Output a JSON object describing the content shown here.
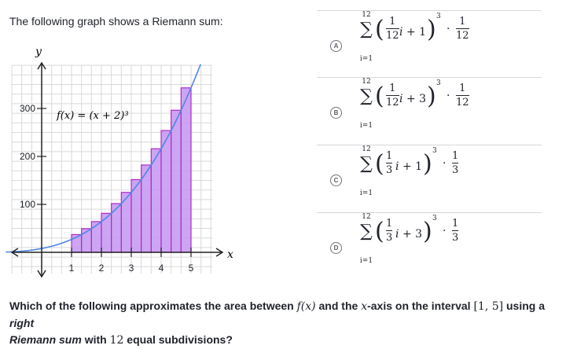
{
  "prompt": "The following graph shows a Riemann sum:",
  "graph": {
    "y_axis_label": "y",
    "x_axis_label": "x",
    "function_label": "f(x) = (x + 2)³",
    "x_ticks": [
      "1",
      "2",
      "3",
      "4",
      "5"
    ],
    "y_ticks": [
      "300",
      "200",
      "100"
    ],
    "colors": {
      "curve": "#4f86e8",
      "bar_fill": "#c79bf2",
      "bar_stroke": "#b327c8",
      "grid": "#d9d9d9",
      "axis": "#222222"
    }
  },
  "chart_data": {
    "type": "bar",
    "title": "",
    "function": "f(x) = (x + 2)^3",
    "subdivisions": 12,
    "interval": [
      1,
      5
    ],
    "bar_right_endpoints": [
      1.333,
      1.667,
      2.0,
      2.333,
      2.667,
      3.0,
      3.333,
      3.667,
      4.0,
      4.333,
      4.667,
      5.0
    ],
    "values": [
      37.0,
      49.3,
      64.0,
      81.4,
      101.6,
      125.0,
      151.7,
      182.0,
      216.0,
      254.0,
      296.3,
      343.0
    ],
    "xlim": [
      -1,
      6
    ],
    "ylim": [
      -50,
      400
    ],
    "grid": true
  },
  "choices": [
    {
      "letter": "A",
      "upper": "12",
      "lower": "i=1",
      "num": "1",
      "den": "12",
      "rest": "+ 1",
      "exp": "3",
      "mult_num": "1",
      "mult_den": "12"
    },
    {
      "letter": "B",
      "upper": "12",
      "lower": "i=1",
      "num": "1",
      "den": "12",
      "rest": "+ 3",
      "exp": "3",
      "mult_num": "1",
      "mult_den": "12"
    },
    {
      "letter": "C",
      "upper": "12",
      "lower": "i=1",
      "num": "1",
      "den": "3",
      "rest": "+ 1",
      "exp": "3",
      "mult_num": "1",
      "mult_den": "3"
    },
    {
      "letter": "D",
      "upper": "12",
      "lower": "i=1",
      "num": "1",
      "den": "3",
      "rest": "+ 3",
      "exp": "3",
      "mult_num": "1",
      "mult_den": "3"
    }
  ],
  "question": {
    "part1": "Which of the following approximates the area between ",
    "fx": "f(x)",
    "part2": " and the ",
    "xaxis": "x",
    "part3": "-axis on the interval ",
    "interval": "[1, 5]",
    "part4": " using a ",
    "right": "right",
    "part5": " Riemann sum",
    "part6": " with ",
    "n": "12",
    "part7": " equal subdivisions?"
  }
}
